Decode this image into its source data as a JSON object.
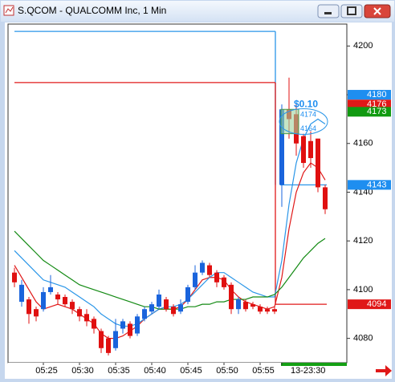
{
  "chart_data": {
    "type": "candlestick",
    "title": "S.QCOM - QUALCOMM Inc, 1 Min",
    "categories": [
      null,
      null,
      null,
      null,
      "05:25",
      null,
      null,
      null,
      null,
      "05:30",
      null,
      null,
      null,
      null,
      "05:35",
      null,
      null,
      null,
      null,
      "05:40",
      null,
      null,
      null,
      null,
      "05:45",
      null,
      null,
      null,
      null,
      "05:50",
      null,
      null,
      null,
      null,
      "05:55",
      null,
      null,
      "13-23:30",
      null,
      null,
      null,
      null,
      null,
      null
    ],
    "open": [
      4107,
      4095,
      4096,
      4092,
      4092,
      4099,
      4098,
      4097,
      4095,
      4092,
      4090,
      4088,
      4083,
      4080,
      4076,
      4084,
      4086,
      4082,
      4088,
      4091,
      4093,
      4096,
      4093,
      4091,
      4095,
      4101,
      4107,
      4110,
      4107,
      4105,
      4102,
      4092,
      4095,
      4094,
      4093,
      4092,
      4092,
      4143,
      4174,
      4172,
      4163,
      4161,
      4162,
      4142
    ],
    "high": [
      4109,
      4104,
      4097,
      4093,
      4101,
      4106,
      4099,
      4098,
      4096,
      4093,
      4092,
      4089,
      4084,
      4081,
      4088,
      4088,
      4087,
      4090,
      4093,
      4095,
      4100,
      4097,
      4094,
      4096,
      4102,
      4110,
      4112,
      4111,
      4108,
      4106,
      4103,
      4097,
      4096,
      4095,
      4094,
      4093,
      4093,
      4176,
      4187,
      4176,
      4164,
      4165,
      4162,
      4143
    ],
    "low": [
      4101,
      4093,
      4086,
      4087,
      4091,
      4098,
      4094,
      4093,
      4090,
      4087,
      4085,
      4082,
      4074,
      4073,
      4075,
      4082,
      4080,
      4081,
      4087,
      4090,
      4092,
      4091,
      4089,
      4090,
      4094,
      4100,
      4106,
      4105,
      4101,
      4100,
      4090,
      4090,
      4091,
      4092,
      4090,
      4090,
      4090,
      4134,
      4162,
      4155,
      4150,
      4150,
      4140,
      4131
    ],
    "close": [
      4103,
      4102,
      4090,
      4089,
      4099,
      4101,
      4096,
      4094,
      4092,
      4089,
      4087,
      4084,
      4076,
      4074,
      4083,
      4087,
      4081,
      4089,
      4092,
      4094,
      4098,
      4092,
      4090,
      4094,
      4101,
      4107,
      4111,
      4106,
      4103,
      4101,
      4092,
      4096,
      4092,
      4093,
      4091,
      4091,
      4091,
      4174,
      4170,
      4160,
      4152,
      4154,
      4142,
      4133
    ],
    "up_color": "#1a64dc",
    "down_color": "#e01010",
    "series": [
      {
        "color": "#e01818",
        "values": [
          4110,
          4105,
          4100,
          4095,
          4092,
          4093,
          4094,
          4093,
          4092,
          4090,
          4088,
          4086,
          4082,
          4080,
          4080,
          4081,
          4083,
          4085,
          4088,
          4090,
          4092,
          4092,
          4092,
          4093,
          4096,
          4100,
          4104,
          4105,
          4105,
          4104,
          4100,
          4097,
          4095,
          4094,
          4093,
          4092,
          4093,
          4105,
          4125,
          4140,
          4148,
          4152,
          4150,
          4145
        ]
      },
      {
        "color": "#2a96e8",
        "values": [
          4116,
          4113,
          4110,
          4107,
          4104,
          4103,
          4102,
          4101,
          4099,
          4097,
          4095,
          4093,
          4090,
          4088,
          4086,
          4085,
          4085,
          4086,
          4088,
          4090,
          4092,
          4093,
          4093,
          4094,
          4096,
          4099,
          4102,
          4105,
          4107,
          4107,
          4105,
          4103,
          4101,
          4099,
          4098,
          4097,
          4097,
          4112,
          4135,
          4152,
          4162,
          4168,
          4170,
          4168
        ]
      },
      {
        "color": "#138a13",
        "values": [
          4124,
          4121,
          4118,
          4115,
          4112,
          4110,
          4108,
          4106,
          4104,
          4102,
          4101,
          4100,
          4099,
          4098,
          4097,
          4096,
          4095,
          4094,
          4093,
          4093,
          4092,
          4092,
          4092,
          4092,
          4093,
          4093,
          4094,
          4094,
          4095,
          4095,
          4096,
          4096,
          4096,
          4097,
          4097,
          4097,
          4098,
          4101,
          4105,
          4109,
          4113,
          4116,
          4119,
          4121
        ]
      }
    ],
    "levels": [
      {
        "color": "#2a96e8",
        "values": [
          4206,
          4143
        ]
      },
      {
        "color": "#e01818",
        "values": [
          4185,
          4094
        ]
      }
    ],
    "price_markers": [
      {
        "value": 4180,
        "color": "#1e8ef0"
      },
      {
        "value": 4176,
        "color": "#e01818"
      },
      {
        "value": 4173,
        "color": "#119a11"
      },
      {
        "value": 4143,
        "color": "#1e8ef0"
      },
      {
        "value": 4094,
        "color": "#e01818"
      }
    ],
    "annotation": {
      "text": "$0.10",
      "upper": 4174,
      "lower": 4164
    },
    "ylim": [
      4070,
      4209
    ],
    "yticks": [
      4080,
      4100,
      4120,
      4140,
      4160,
      4180,
      4200
    ]
  }
}
